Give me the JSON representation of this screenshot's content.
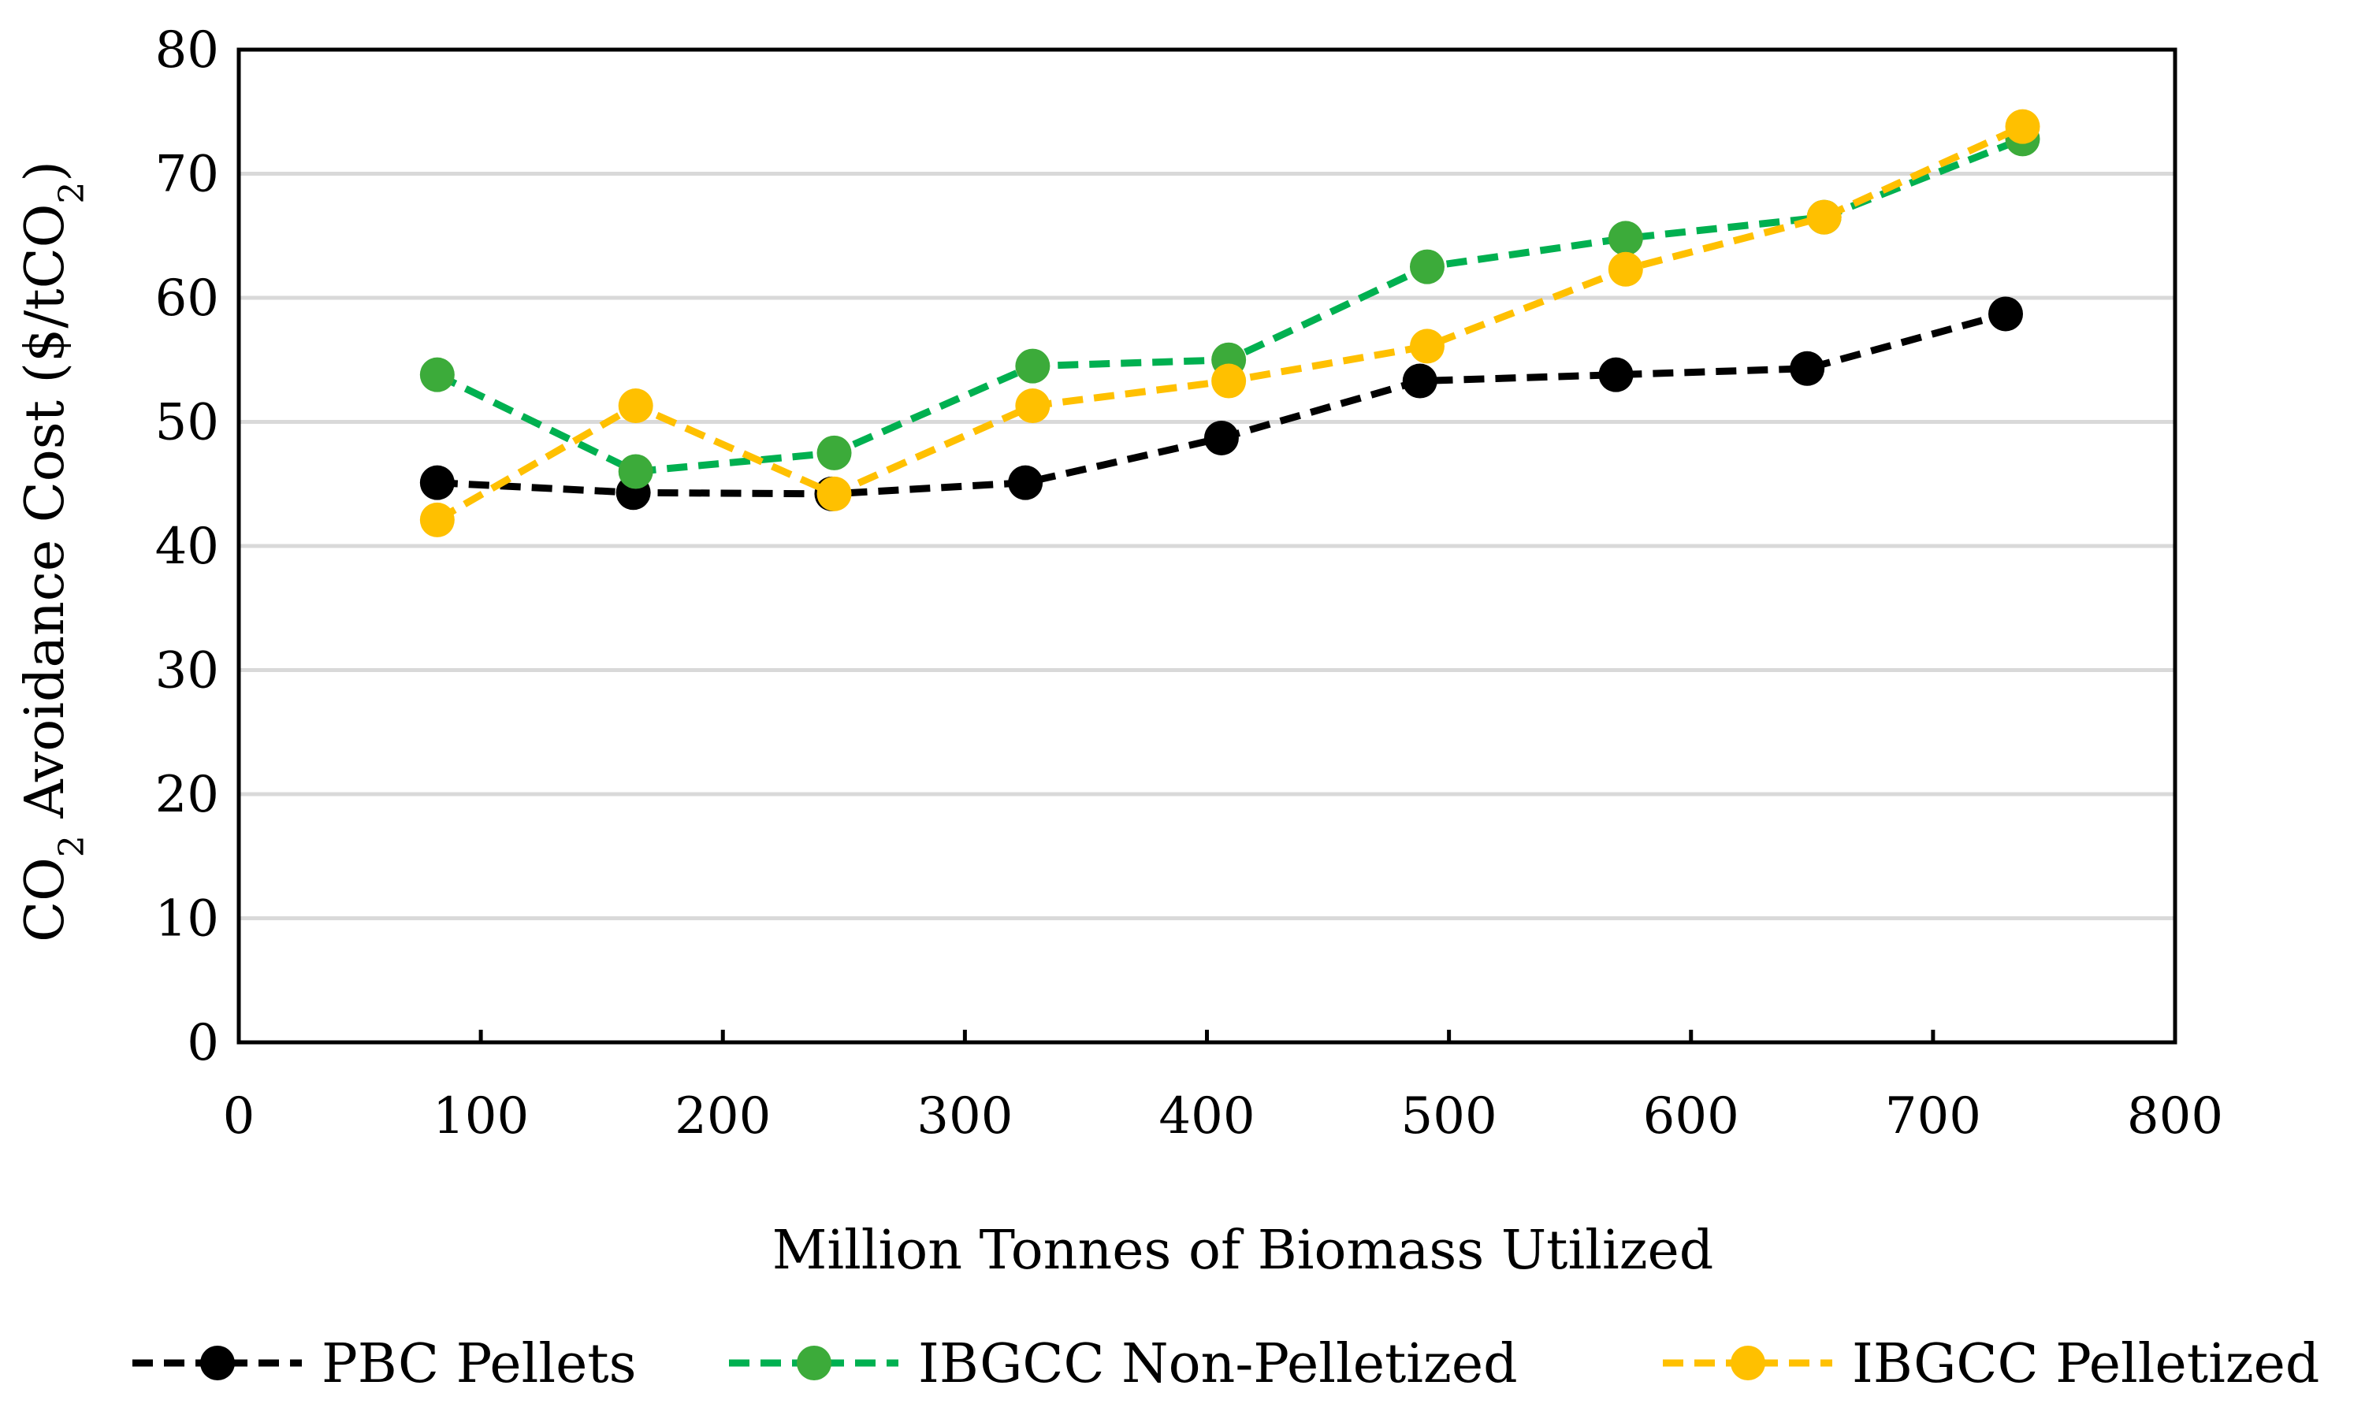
{
  "chart_data": {
    "type": "line",
    "title": "",
    "xlabel": "Million Tonnes of Biomass Utilized",
    "ylabel": {
      "part1": "CO",
      "sub1": "2",
      "part2": " Avoidance Cost ($/tCO",
      "sub2": "2",
      "part3": ")"
    },
    "xlim": [
      0,
      800
    ],
    "ylim": [
      0,
      80
    ],
    "xticks": [
      0,
      100,
      200,
      300,
      400,
      500,
      600,
      700,
      800
    ],
    "yticks": [
      0,
      10,
      20,
      30,
      40,
      50,
      60,
      70,
      80
    ],
    "grid": "horizontal",
    "legend_position": "bottom",
    "series": [
      {
        "name": "PBC Pellets",
        "color": "#000000",
        "x": [
          82,
          163,
          245,
          325,
          406,
          488,
          569,
          648,
          730
        ],
        "y": [
          45.1,
          44.3,
          44.2,
          45.1,
          48.7,
          53.3,
          53.8,
          54.3,
          58.7
        ]
      },
      {
        "name": "IBGCC Non-Pelletized",
        "color": "#3cab3a",
        "lineColor": "#00b050",
        "x": [
          82,
          164,
          246,
          328,
          409,
          491,
          573,
          655,
          737
        ],
        "y": [
          53.8,
          46.0,
          47.5,
          54.5,
          55.0,
          62.5,
          64.8,
          66.5,
          72.8
        ]
      },
      {
        "name": "IBGCC Pelletized",
        "color": "#ffc000",
        "lineColor": "#ffc000",
        "x": [
          82,
          164,
          246,
          328,
          409,
          491,
          573,
          655,
          737
        ],
        "y": [
          42.1,
          51.3,
          44.2,
          51.3,
          53.3,
          56.1,
          62.3,
          66.5,
          73.8
        ]
      }
    ]
  }
}
